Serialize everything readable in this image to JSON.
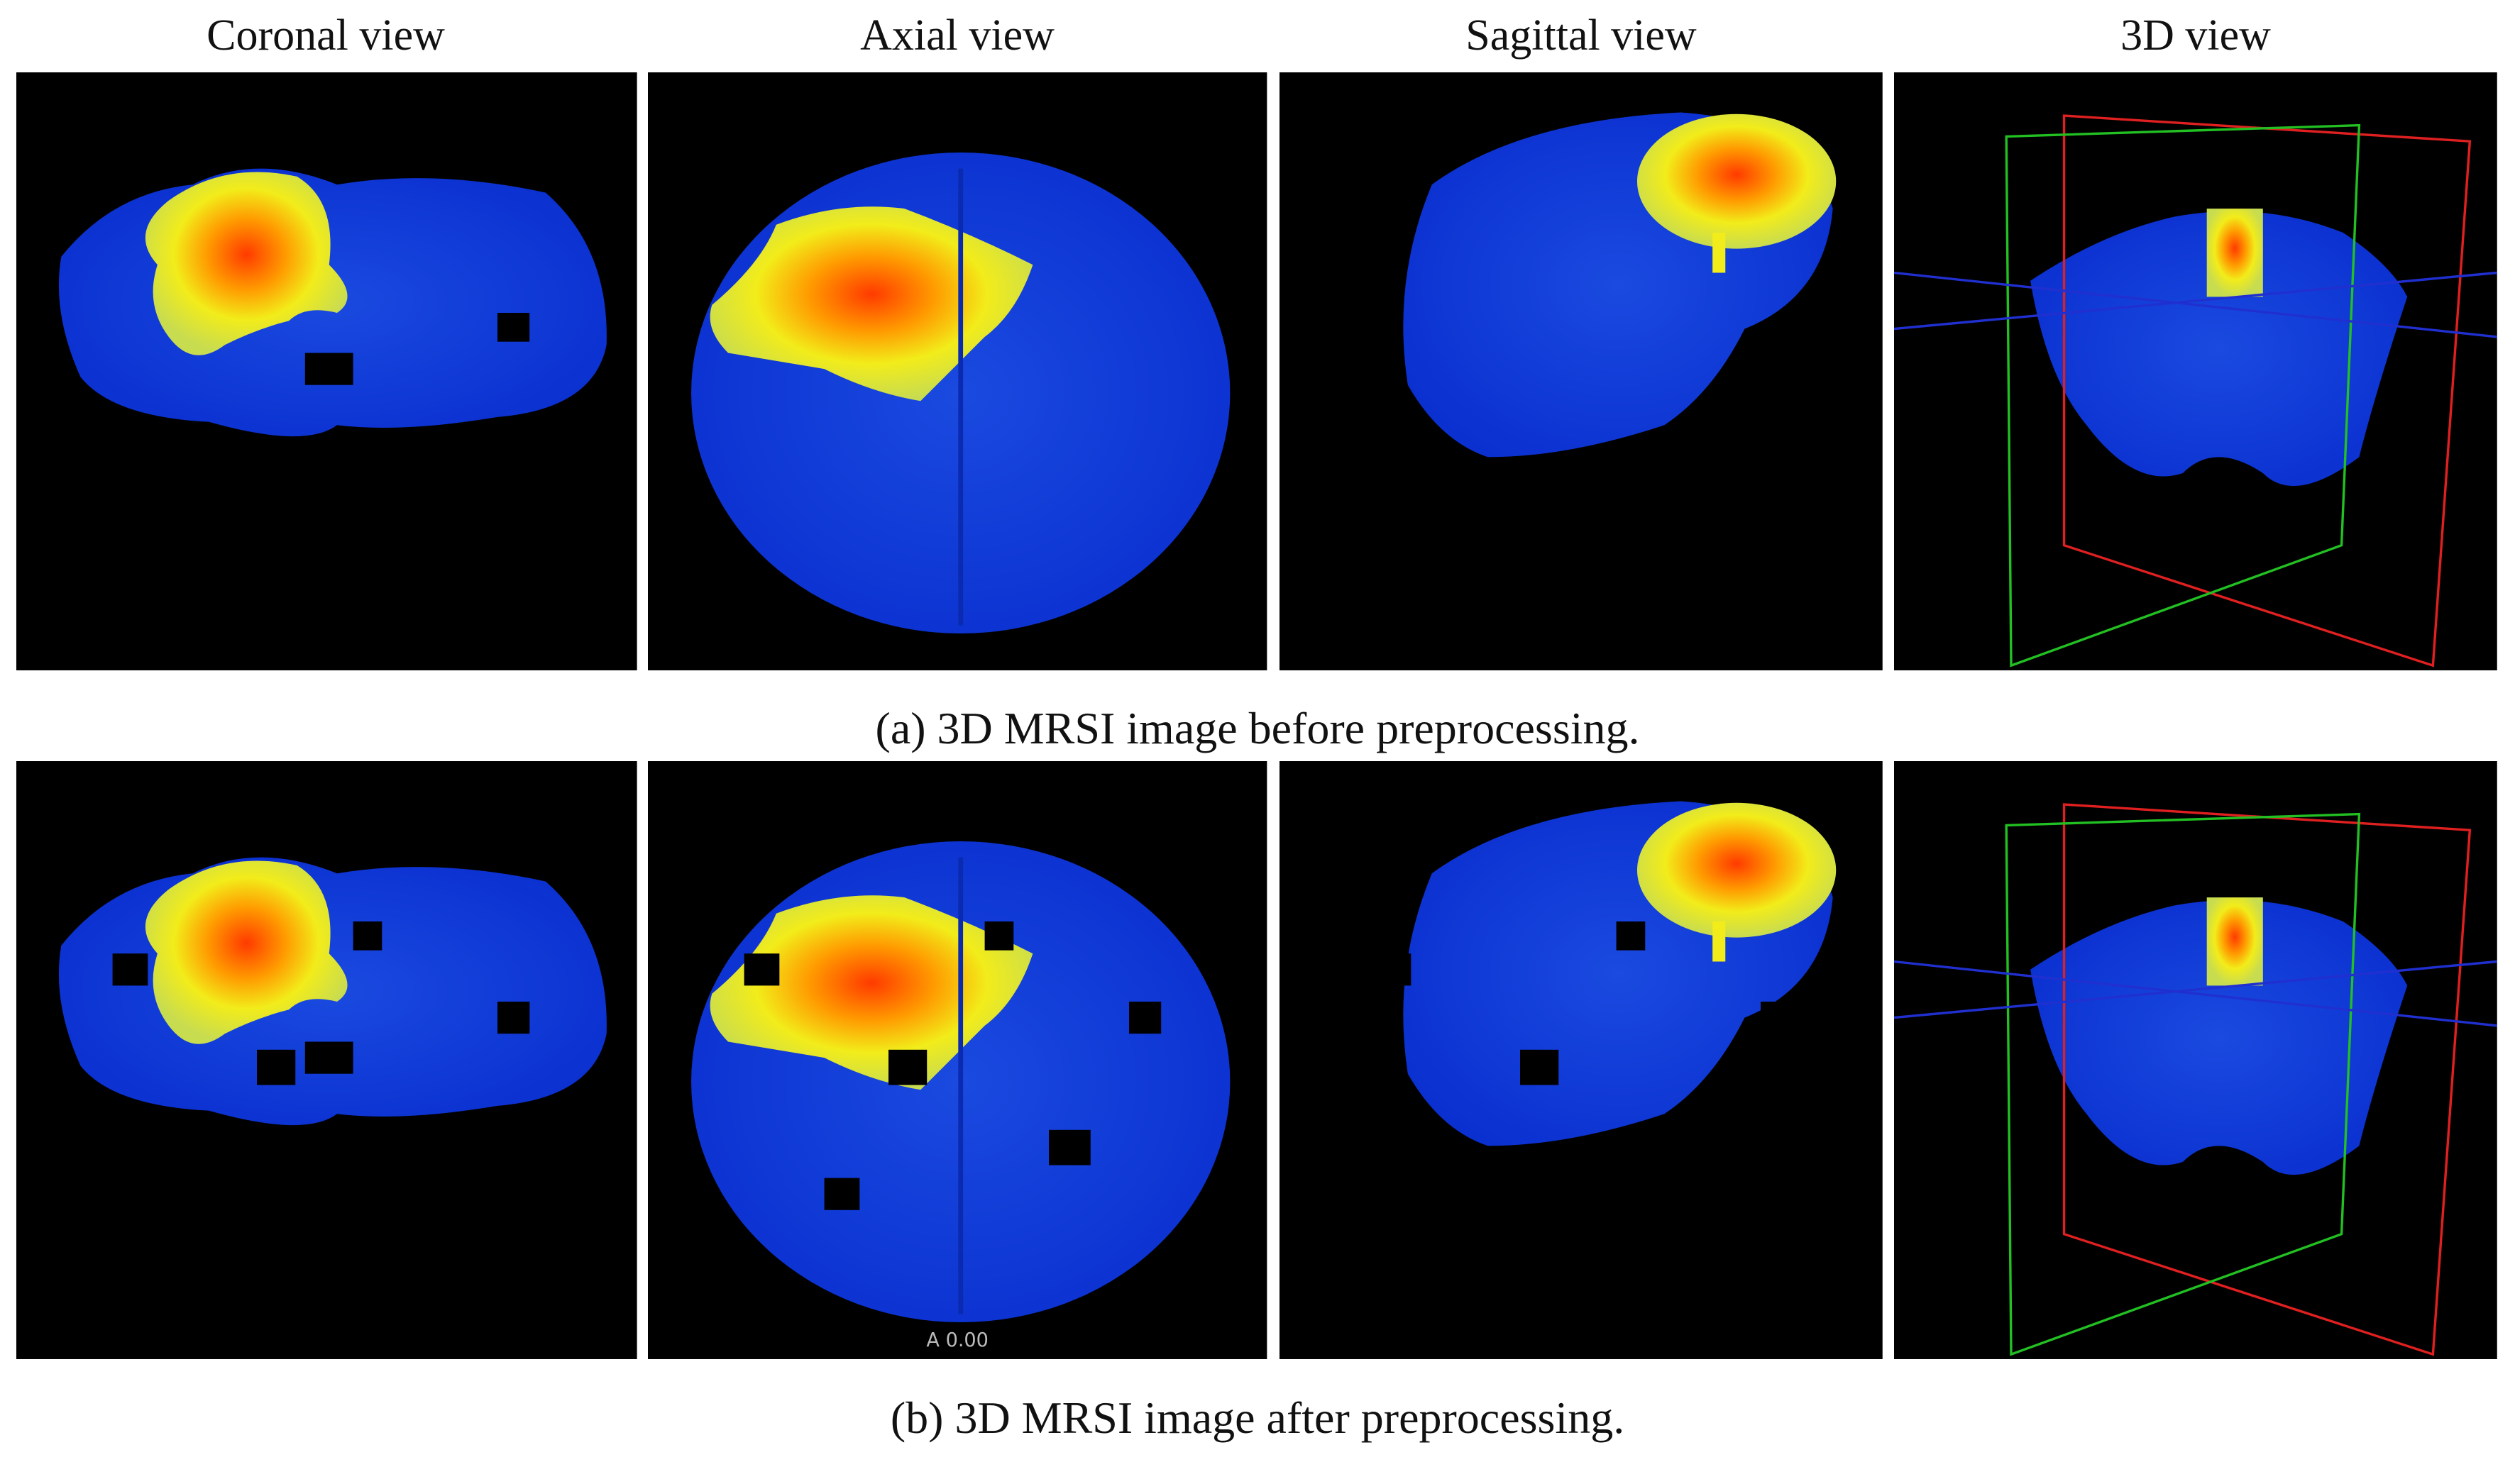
{
  "figure": {
    "headers": [
      "Coronal view",
      "Axial view",
      "Sagittal view",
      "3D view"
    ],
    "captions": [
      "(a) 3D MRSI image before preprocessing.",
      "(b) 3D MRSI image after preprocessing."
    ],
    "annotation": "A 0.00"
  }
}
